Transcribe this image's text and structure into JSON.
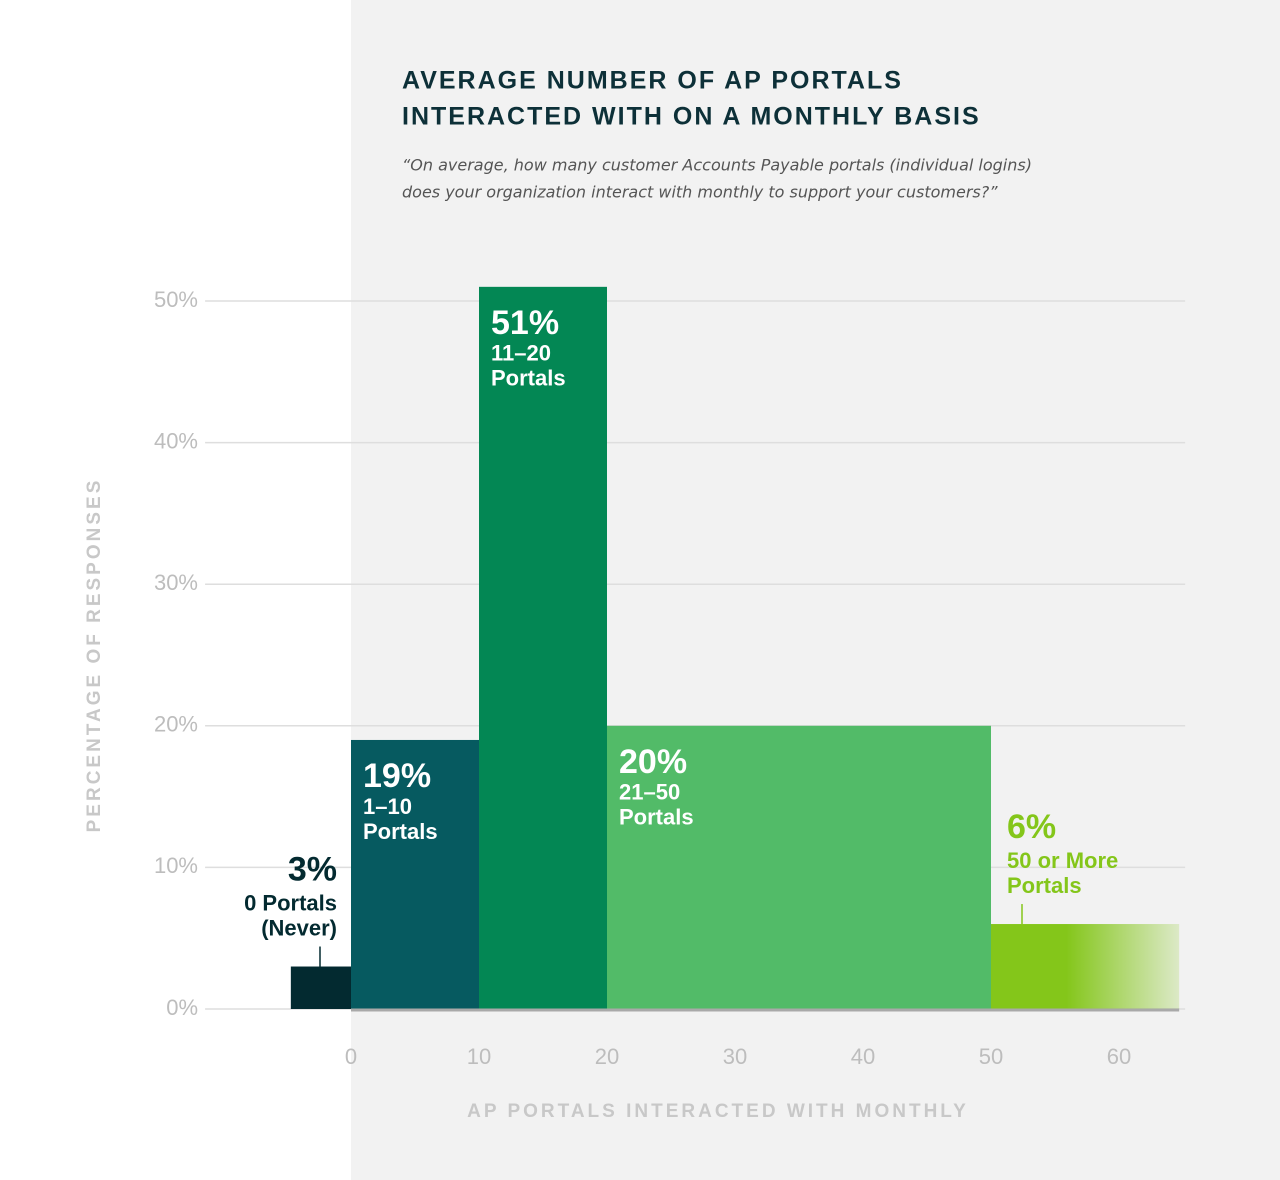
{
  "chart_data": {
    "type": "histogram",
    "title": [
      "AVERAGE NUMBER OF AP PORTALS",
      "INTERACTED WITH ON A MONTHLY BASIS"
    ],
    "subtitle": [
      "“On average, how many customer Accounts Payable portals (individual logins)",
      "does your organization interact with monthly to support your customers?”"
    ],
    "x_label": "AP PORTALS INTERACTED WITH MONTHLY",
    "y_label": "PERCENTAGE OF RESPONSES",
    "bins": [
      -4.7,
      0,
      10,
      20,
      50,
      64.7
    ],
    "values": [
      3,
      19,
      51,
      20,
      6
    ],
    "value_labels": [
      "3%",
      "19%",
      "51%",
      "20%",
      "6%"
    ],
    "bar_labels": [
      [
        "0 Portals",
        "(Never)"
      ],
      [
        "1–10",
        "Portals"
      ],
      [
        "11–20",
        "Portals"
      ],
      [
        "21–50",
        "Portals"
      ],
      [
        "50 or More",
        "Portals"
      ]
    ],
    "colors": [
      "#032a30",
      "#065a60",
      "#038754",
      "#52bb68",
      "#84c61a"
    ],
    "xlim": [
      -11.4,
      64.7
    ],
    "ylim": [
      0,
      50
    ],
    "xticks": [
      0,
      10,
      20,
      30,
      40,
      50,
      60
    ],
    "yticks": [
      {
        "value": 0,
        "label": "0%"
      },
      {
        "value": 10,
        "label": "10%"
      },
      {
        "value": 20,
        "label": "20%"
      },
      {
        "value": 30,
        "label": "30%"
      },
      {
        "value": 40,
        "label": "40%"
      },
      {
        "value": 50,
        "label": "50%"
      }
    ],
    "grid": true
  }
}
